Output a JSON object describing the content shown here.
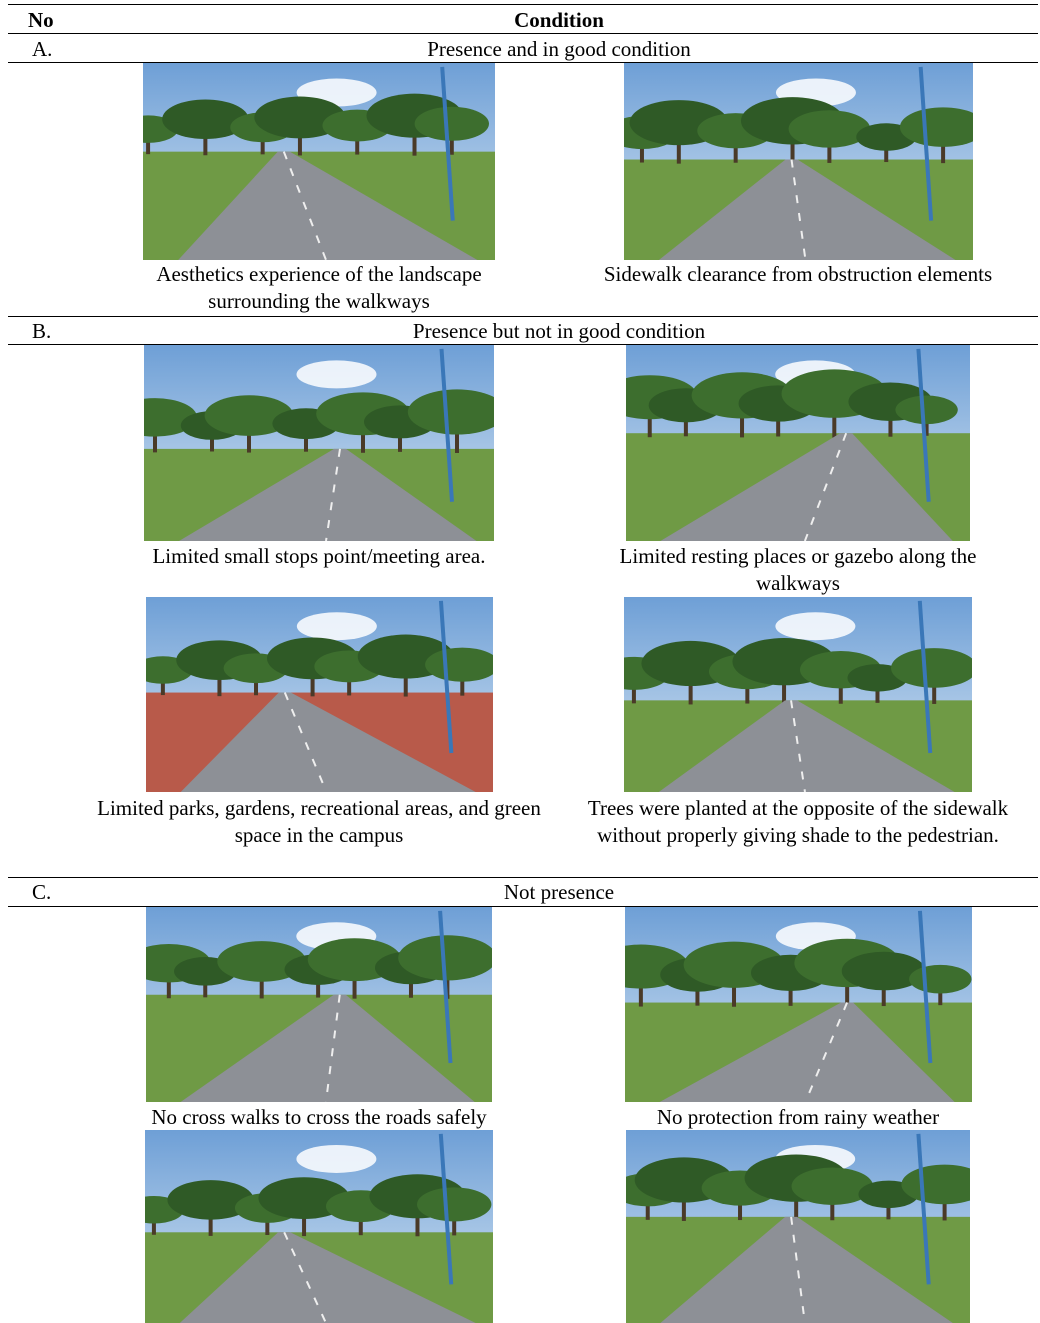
{
  "header": {
    "no": "No",
    "condition": "Condition"
  },
  "sections": [
    {
      "no": "A.",
      "title": "Presence and in good condition",
      "captions": [
        "Aesthetics experience of the landscape surrounding the walkways",
        "Sidewalk clearance from obstruction elements"
      ]
    },
    {
      "no": "B.",
      "title": "Presence but not in good condition",
      "captions": [
        "Limited small stops point/meeting area.",
        "Limited resting places or gazebo along the walkways",
        "Limited parks, gardens, recreational areas, and green space in the campus",
        "Trees were planted at the opposite of the sidewalk without properly giving shade to the pedestrian."
      ]
    },
    {
      "no": "C.",
      "title": "Not presence",
      "captions": [
        "No cross walks to cross the roads safely",
        "No protection from rainy weather"
      ]
    }
  ]
}
